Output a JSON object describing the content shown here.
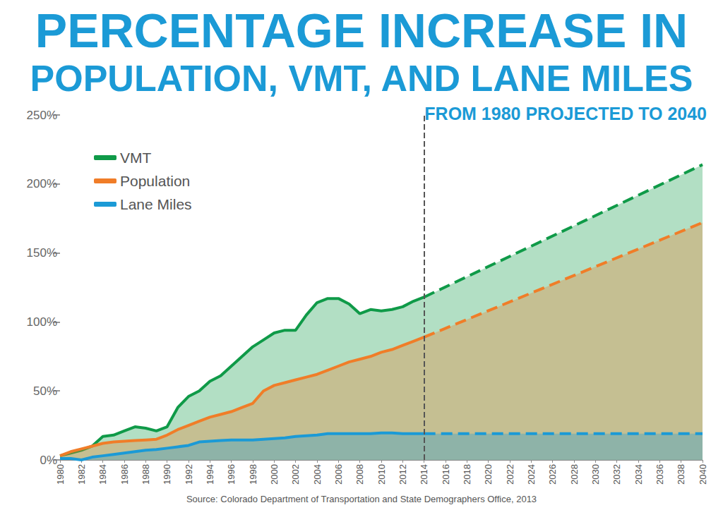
{
  "chart_data": {
    "type": "line",
    "title": "PERCENTAGE INCREASE IN\nPOPULATION, VMT, AND LANE MILES",
    "subtitle": "FROM 1980 PROJECTED TO 2040",
    "source": "Source: Colorado Department of Transportation and State Demographers Office, 2013",
    "x": [
      1980,
      1981,
      1982,
      1983,
      1984,
      1985,
      1986,
      1987,
      1988,
      1989,
      1990,
      1991,
      1992,
      1993,
      1994,
      1995,
      1996,
      1997,
      1998,
      1999,
      2000,
      2001,
      2002,
      2003,
      2004,
      2005,
      2006,
      2007,
      2008,
      2009,
      2010,
      2011,
      2012,
      2013,
      2014,
      2040
    ],
    "series": [
      {
        "name": "VMT",
        "color": "#0f9a48",
        "values": [
          3,
          5,
          7,
          10,
          17,
          18,
          21,
          24,
          23,
          21,
          24,
          38,
          46,
          50,
          57,
          61,
          68,
          75,
          82,
          87,
          92,
          94,
          94,
          105,
          114,
          117,
          117,
          113,
          106,
          109,
          108,
          109,
          111,
          115,
          118,
          214
        ]
      },
      {
        "name": "Population",
        "color": "#f07d28",
        "values": [
          3,
          6,
          8,
          10,
          12,
          13,
          13.5,
          14,
          14.5,
          15,
          18,
          22,
          25,
          28,
          31,
          33,
          35,
          38,
          41,
          50,
          54,
          56,
          58,
          60,
          62,
          65,
          68,
          71,
          73,
          75,
          78,
          80,
          83,
          86,
          89,
          172
        ]
      },
      {
        "name": "Lane Miles",
        "color": "#1b9ad6",
        "values": [
          1,
          1,
          0,
          2,
          3,
          4,
          5,
          6,
          7,
          7.5,
          8.5,
          9.5,
          10.5,
          13,
          13.5,
          14,
          14.5,
          14.5,
          14.5,
          15,
          15.5,
          16,
          17,
          17.5,
          18,
          19,
          19,
          19,
          19,
          19,
          19.5,
          19.5,
          19,
          19,
          19,
          19
        ]
      }
    ],
    "annotations": [
      {
        "type": "vline",
        "x": 2014,
        "line_style": "dashed"
      }
    ],
    "xlim": [
      1980,
      2040
    ],
    "xticks": [
      1980,
      1982,
      1984,
      1986,
      1988,
      1990,
      1992,
      1994,
      1996,
      1998,
      2000,
      2002,
      2004,
      2006,
      2008,
      2010,
      2012,
      2014,
      2016,
      2018,
      2020,
      2022,
      2024,
      2026,
      2028,
      2030,
      2032,
      2034,
      2036,
      2038,
      2040
    ],
    "ylim": [
      0,
      250
    ],
    "yticks": [
      {
        "value": 0,
        "label": "0%"
      },
      {
        "value": 50,
        "label": "50%"
      },
      {
        "value": 100,
        "label": "100%"
      },
      {
        "value": 150,
        "label": "150%"
      },
      {
        "value": 200,
        "label": "200%"
      },
      {
        "value": 250,
        "label": "250%"
      }
    ],
    "grid": false,
    "legend": "upper left"
  }
}
